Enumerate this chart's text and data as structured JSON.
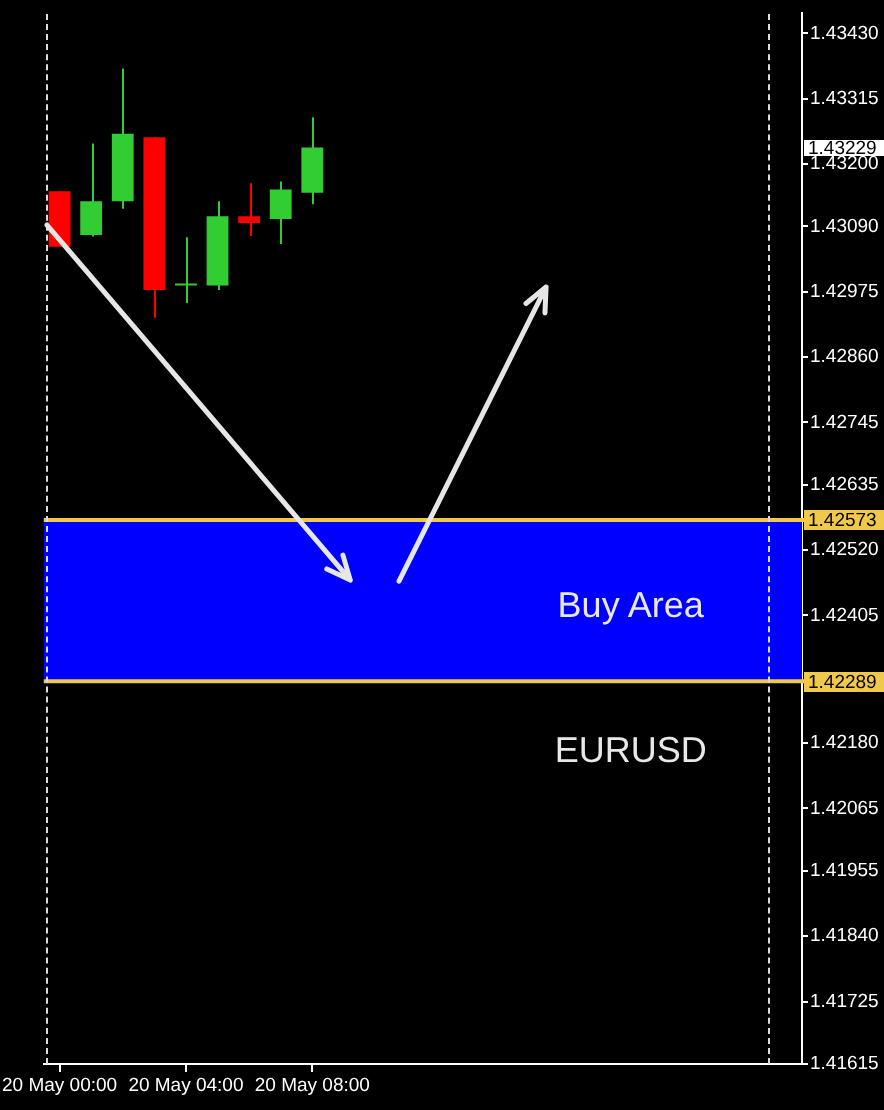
{
  "chart_data": {
    "type": "candlestick",
    "categories": [
      "20 May 00:00",
      null,
      null,
      null,
      "20 May 04:00",
      null,
      null,
      null,
      "20 May 08:00",
      null,
      null,
      null,
      null,
      null,
      null,
      null,
      null,
      null,
      null,
      null,
      null,
      null,
      null,
      null
    ],
    "ohlc": [
      [
        1.43152,
        1.43152,
        1.43054,
        1.43054
      ],
      [
        1.43075,
        1.43236,
        1.43072,
        1.43134
      ],
      [
        1.43134,
        1.43368,
        1.43121,
        1.43253
      ],
      [
        1.43247,
        1.43247,
        1.42929,
        1.42978
      ],
      [
        1.42986,
        1.43071,
        1.42955,
        1.42986
      ],
      [
        1.42986,
        1.43134,
        1.42978,
        1.43108
      ],
      [
        1.43108,
        1.43166,
        1.43073,
        1.43096
      ],
      [
        1.43103,
        1.43169,
        1.43059,
        1.43155
      ],
      [
        1.43149,
        1.43282,
        1.43129,
        1.43229
      ],
      null,
      null,
      null,
      null,
      null,
      null,
      null,
      null,
      null,
      null,
      null,
      null,
      null,
      null,
      null
    ],
    "colors": [
      "#ff0000",
      "#32cd32",
      "#32cd32",
      "#ff0000",
      "#32cd32",
      "#32cd32",
      "#ff0000",
      "#32cd32",
      "#32cd32",
      null,
      null,
      null,
      null,
      null,
      null,
      null,
      null,
      null,
      null,
      null,
      null,
      null,
      null,
      null
    ],
    "ylim": [
      1.41615,
      1.43465
    ],
    "yticks": [
      {
        "value": 1.4343,
        "label": "1.43430"
      },
      1.43315,
      {
        "value": 1.432,
        "label": "1.43200"
      },
      {
        "value": 1.4309,
        "label": "1.43090"
      },
      1.42975,
      {
        "value": 1.4286,
        "label": "1.42860"
      },
      1.42745,
      1.42635,
      {
        "value": 1.4252,
        "label": "1.42520"
      },
      1.42405,
      {
        "value": 1.4218,
        "label": "1.42180"
      },
      1.42065,
      1.41955,
      {
        "value": 1.4184,
        "label": "1.41840"
      },
      1.41725,
      1.41615
    ],
    "bands": [
      {
        "axis": "y",
        "from": 1.42289,
        "to": 1.42573,
        "label": "Buy Area",
        "color": "#0000ff"
      }
    ],
    "ref_lines": [
      {
        "axis": "y",
        "value": 1.42573,
        "label": "1.42573",
        "color": "#f0c84a"
      },
      {
        "axis": "y",
        "value": 1.42289,
        "label": "1.42289",
        "color": "#f0c84a"
      }
    ],
    "annotations": [
      "EURUSD",
      "1.43229"
    ]
  }
}
